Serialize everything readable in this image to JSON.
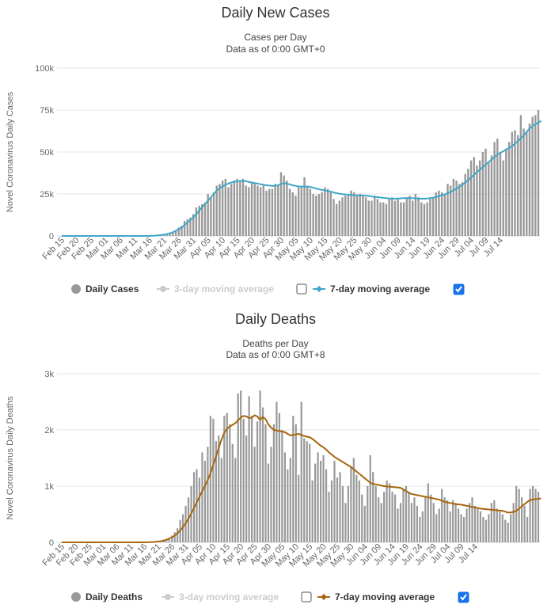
{
  "chart_data": [
    {
      "type": "bar",
      "title": "Daily New Cases",
      "subtitle": [
        "Cases per Day",
        "Data as of 0:00 GMT+0"
      ],
      "ylabel": "Novel Coronavirus Daily Cases",
      "ylim": [
        0,
        100000
      ],
      "yticks": [
        {
          "value": 0,
          "label": "0"
        },
        {
          "value": 25000,
          "label": "25k"
        },
        {
          "value": 50000,
          "label": "50k"
        },
        {
          "value": 75000,
          "label": "75k"
        },
        {
          "value": 100000,
          "label": "100k"
        }
      ],
      "x_start": "Feb 15",
      "x_tick_labels": [
        "Feb 15",
        "Feb 20",
        "Feb 25",
        "Mar 01",
        "Mar 06",
        "Mar 11",
        "Mar 16",
        "Mar 21",
        "Mar 26",
        "Mar 31",
        "Apr 05",
        "Apr 10",
        "Apr 15",
        "Apr 20",
        "Apr 25",
        "Apr 30",
        "May 05",
        "May 10",
        "May 15",
        "May 20",
        "May 25",
        "May 30",
        "Jun 04",
        "Jun 09",
        "Jun 14",
        "Jun 19",
        "Jun 24",
        "Jun 29",
        "Jul 04",
        "Jul 09",
        "Jul 14"
      ],
      "grid": true,
      "legend": {
        "placement": "bottom",
        "items": [
          {
            "label": "Daily Cases",
            "color": "#999999",
            "active": true
          },
          {
            "label": "3-day moving average",
            "color": "#cccccc",
            "active": false
          },
          {
            "label": "7-day moving average",
            "color": "#3fa7c8",
            "active": true
          }
        ]
      },
      "series": [
        {
          "name": "Daily Cases",
          "kind": "bar",
          "color": "#999999",
          "values": [
            0,
            0,
            0,
            0,
            0,
            0,
            0,
            0,
            0,
            0,
            0,
            0,
            0,
            0,
            0,
            0,
            0,
            0,
            0,
            0,
            0,
            0,
            0,
            0,
            0,
            0,
            0,
            0,
            0,
            0,
            0,
            100,
            200,
            300,
            500,
            800,
            1200,
            1800,
            2500,
            3400,
            5000,
            6000,
            9000,
            10000,
            11000,
            13000,
            17000,
            18000,
            19000,
            20000,
            25000,
            23000,
            26000,
            30000,
            31000,
            33000,
            34000,
            29000,
            31000,
            33000,
            34000,
            33000,
            34000,
            30000,
            29000,
            32000,
            31000,
            30000,
            29000,
            30000,
            27000,
            28000,
            28000,
            31000,
            30000,
            38000,
            36000,
            33000,
            28000,
            26000,
            24000,
            29000,
            30000,
            35000,
            29000,
            28000,
            25000,
            24000,
            25000,
            26000,
            29000,
            28000,
            26000,
            22000,
            19000,
            21000,
            23000,
            24000,
            24000,
            27000,
            26000,
            24000,
            25000,
            24000,
            23000,
            21000,
            21000,
            24000,
            22000,
            20000,
            20000,
            19000,
            22000,
            23000,
            21000,
            22000,
            20000,
            20000,
            23000,
            24000,
            21000,
            25000,
            23000,
            20000,
            19000,
            20000,
            22000,
            23000,
            26000,
            27000,
            26000,
            25000,
            31000,
            30000,
            34000,
            33000,
            31000,
            32000,
            37000,
            40000,
            45000,
            47000,
            42000,
            45000,
            50000,
            52000,
            44000,
            48000,
            56000,
            58000,
            50000,
            45000,
            52000,
            56000,
            62000,
            63000,
            60000,
            72000,
            64000,
            62000,
            67000,
            71000,
            72000,
            75000
          ]
        },
        {
          "name": "7-day moving average",
          "kind": "line",
          "color": "#3fa7c8",
          "values": [
            0,
            0,
            0,
            0,
            0,
            0,
            0,
            0,
            0,
            0,
            0,
            0,
            0,
            0,
            0,
            0,
            0,
            0,
            0,
            0,
            0,
            0,
            0,
            0,
            0,
            0,
            0,
            0,
            0,
            0,
            0,
            100,
            200,
            350,
            550,
            800,
            1100,
            1600,
            2200,
            3000,
            4000,
            5000,
            6500,
            8000,
            9500,
            11000,
            13000,
            15000,
            17000,
            19000,
            21000,
            23000,
            25000,
            27000,
            28500,
            29500,
            30500,
            31200,
            31800,
            32300,
            32500,
            32700,
            32900,
            32600,
            32200,
            31800,
            31500,
            31200,
            30800,
            30500,
            30200,
            30000,
            29800,
            29900,
            30200,
            31000,
            31500,
            31200,
            30700,
            30200,
            29800,
            29500,
            29400,
            29500,
            29400,
            29200,
            28800,
            28300,
            27800,
            27400,
            27100,
            26800,
            26400,
            25900,
            25500,
            25200,
            24900,
            24700,
            24500,
            24400,
            24300,
            24200,
            24200,
            24100,
            24000,
            23800,
            23500,
            23300,
            23100,
            22900,
            22700,
            22500,
            22300,
            22200,
            22200,
            22300,
            22400,
            22500,
            22500,
            22500,
            22500,
            22400,
            22300,
            22200,
            22200,
            22300,
            22500,
            22800,
            23200,
            23700,
            24200,
            24800,
            25500,
            26300,
            27200,
            28200,
            29300,
            30500,
            31800,
            33200,
            34800,
            36400,
            38000,
            39500,
            41000,
            42500,
            44000,
            45500,
            47000,
            48500,
            49500,
            50500,
            51500,
            52500,
            53500,
            55000,
            56500,
            58000,
            60000,
            62000,
            64000,
            65500,
            66500,
            67500,
            68500
          ]
        }
      ]
    },
    {
      "type": "bar",
      "title": "Daily Deaths",
      "subtitle": [
        "Deaths per Day",
        "Data as of 0:00 GMT+8"
      ],
      "ylabel": "Novel Coronavirus Daily Deaths",
      "ylim": [
        0,
        3000
      ],
      "yticks": [
        {
          "value": 0,
          "label": "0"
        },
        {
          "value": 1000,
          "label": "1k"
        },
        {
          "value": 2000,
          "label": "2k"
        },
        {
          "value": 3000,
          "label": "3k"
        }
      ],
      "x_start": "Feb 15",
      "x_tick_labels": [
        "Feb 15",
        "Feb 20",
        "Feb 25",
        "Mar 01",
        "Mar 06",
        "Mar 11",
        "Mar 16",
        "Mar 21",
        "Mar 26",
        "Mar 31",
        "Apr 05",
        "Apr 10",
        "Apr 15",
        "Apr 20",
        "Apr 25",
        "Apr 30",
        "May 05",
        "May 10",
        "May 15",
        "May 20",
        "May 25",
        "May 30",
        "Jun 04",
        "Jun 09",
        "Jun 14",
        "Jun 19",
        "Jun 24",
        "Jun 29",
        "Jul 04",
        "Jul 09",
        "Jul 14"
      ],
      "grid": true,
      "legend": {
        "placement": "bottom",
        "items": [
          {
            "label": "Daily Deaths",
            "color": "#999999",
            "active": true
          },
          {
            "label": "3-day moving average",
            "color": "#cccccc",
            "active": false
          },
          {
            "label": "7-day moving average",
            "color": "#a8660d",
            "active": true
          }
        ]
      },
      "series": [
        {
          "name": "Daily Deaths",
          "kind": "bar",
          "color": "#999999",
          "values": [
            0,
            0,
            0,
            0,
            0,
            0,
            0,
            0,
            0,
            0,
            0,
            0,
            0,
            0,
            0,
            0,
            0,
            0,
            0,
            0,
            0,
            0,
            0,
            0,
            0,
            0,
            0,
            0,
            0,
            0,
            0,
            1,
            2,
            5,
            8,
            12,
            20,
            30,
            50,
            80,
            120,
            180,
            250,
            400,
            500,
            650,
            800,
            1000,
            1250,
            1300,
            1150,
            1600,
            1450,
            1700,
            2250,
            2200,
            1800,
            1900,
            1500,
            2250,
            2300,
            2100,
            1750,
            1500,
            2650,
            2700,
            2200,
            1900,
            2600,
            2250,
            1700,
            2150,
            2700,
            2400,
            2100,
            1400,
            1700,
            2100,
            2500,
            2300,
            2000,
            1600,
            1300,
            1500,
            2250,
            2100,
            1200,
            2500,
            1850,
            1800,
            1750,
            1100,
            1400,
            1600,
            1450,
            1550,
            1300,
            900,
            1100,
            1450,
            1150,
            1250,
            1000,
            700,
            1000,
            1350,
            1500,
            1200,
            1100,
            850,
            650,
            1000,
            1550,
            1250,
            1000,
            800,
            700,
            900,
            1100,
            1050,
            900,
            850,
            600,
            700,
            950,
            1000,
            900,
            700,
            800,
            650,
            450,
            550,
            800,
            1050,
            850,
            700,
            500,
            600,
            950,
            800,
            750,
            550,
            750,
            700,
            600,
            500,
            450,
            600,
            700,
            800,
            650,
            600,
            550,
            450,
            400,
            500,
            700,
            750,
            600,
            550,
            500,
            400,
            350,
            500,
            700,
            1000,
            950,
            800,
            650,
            450,
            950,
            1000,
            950,
            900
          ]
        },
        {
          "name": "7-day moving average",
          "kind": "line",
          "color": "#a8660d",
          "values": [
            0,
            0,
            0,
            0,
            0,
            0,
            0,
            0,
            0,
            0,
            0,
            0,
            0,
            0,
            0,
            0,
            0,
            0,
            0,
            0,
            0,
            0,
            0,
            0,
            0,
            0,
            0,
            0,
            0,
            0,
            0,
            2,
            4,
            6,
            10,
            15,
            22,
            32,
            46,
            65,
            90,
            120,
            160,
            210,
            270,
            340,
            420,
            510,
            610,
            710,
            810,
            910,
            1010,
            1110,
            1230,
            1380,
            1530,
            1680,
            1830,
            1950,
            2020,
            2060,
            2090,
            2120,
            2170,
            2220,
            2250,
            2240,
            2210,
            2220,
            2260,
            2240,
            2180,
            2230,
            2190,
            2100,
            2040,
            2000,
            1990,
            1980,
            1970,
            1960,
            1930,
            1900,
            1910,
            1920,
            1930,
            1910,
            1890,
            1880,
            1870,
            1840,
            1800,
            1760,
            1720,
            1690,
            1650,
            1600,
            1560,
            1520,
            1490,
            1460,
            1430,
            1400,
            1370,
            1340,
            1300,
            1260,
            1220,
            1180,
            1140,
            1100,
            1060,
            1040,
            1030,
            1020,
            1010,
            1000,
            995,
            990,
            985,
            980,
            975,
            970,
            940,
            910,
            880,
            860,
            850,
            840,
            830,
            820,
            810,
            800,
            790,
            780,
            770,
            760,
            740,
            720,
            710,
            700,
            690,
            680,
            675,
            670,
            660,
            650,
            640,
            630,
            620,
            610,
            600,
            595,
            590,
            585,
            580,
            575,
            570,
            565,
            560,
            545,
            530,
            530,
            540,
            560,
            600,
            640,
            680,
            720,
            750,
            760,
            770,
            775,
            780
          ]
        }
      ]
    }
  ]
}
